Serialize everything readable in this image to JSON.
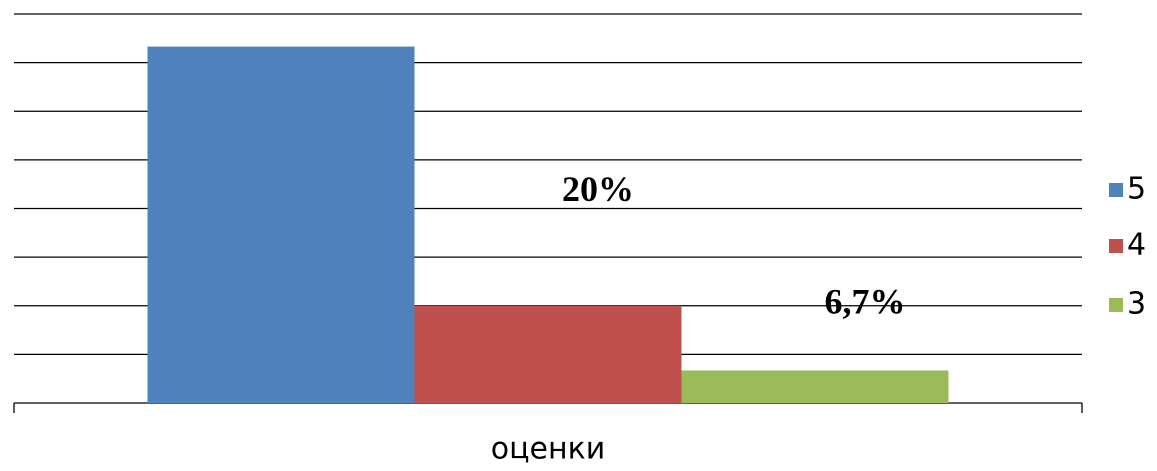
{
  "chart_data": {
    "type": "bar",
    "categories": [
      "оценки"
    ],
    "series": [
      {
        "name": "5",
        "color": "#4f81bd",
        "values": [
          73.3
        ]
      },
      {
        "name": "4",
        "color": "#c0504d",
        "values": [
          20
        ],
        "value_labels": [
          "20%"
        ]
      },
      {
        "name": "3",
        "color": "#9bbb59",
        "values": [
          6.7
        ],
        "value_labels": [
          "6,7%"
        ]
      }
    ],
    "ylim": [
      0,
      80
    ],
    "yticks": [
      0,
      10,
      20,
      30,
      40,
      50,
      60,
      70,
      80
    ],
    "grid": true,
    "legend": "right"
  }
}
